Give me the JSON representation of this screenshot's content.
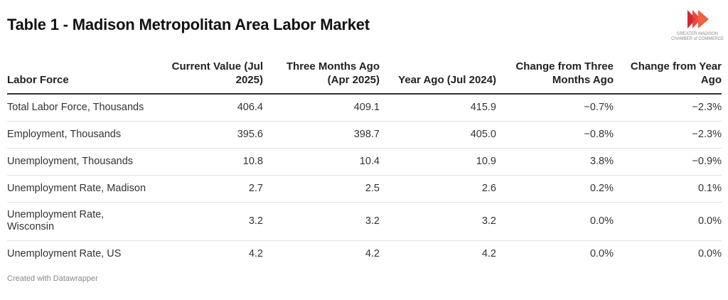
{
  "title": "Table 1 - Madison Metropolitan Area Labor Market",
  "logo": {
    "line1": "GREATER MADISON",
    "line2": "CHAMBER of COMMERCE",
    "colors": [
      "#d8262e",
      "#f2613f"
    ]
  },
  "chart_data": {
    "type": "table",
    "title": "Table 1 - Madison Metropolitan Area Labor Market",
    "columns": [
      "Labor Force",
      "Current Value (Jul 2025)",
      "Three Months Ago (Apr 2025)",
      "Year Ago (Jul 2024)",
      "Change from Three Months Ago",
      "Change from Year Ago"
    ],
    "rows": [
      [
        "Total Labor Force, Thousands",
        "406.4",
        "409.1",
        "415.9",
        "−0.7%",
        "−2.3%"
      ],
      [
        "Employment, Thousands",
        "395.6",
        "398.7",
        "405.0",
        "−0.8%",
        "−2.3%"
      ],
      [
        "Unemployment, Thousands",
        "10.8",
        "10.4",
        "10.9",
        "3.8%",
        "−0.9%"
      ],
      [
        "Unemployment Rate, Madison",
        "2.7",
        "2.5",
        "2.6",
        "0.2%",
        "0.1%"
      ],
      [
        "Unemployment Rate, Wisconsin",
        "3.2",
        "3.2",
        "3.2",
        "0.0%",
        "0.0%"
      ],
      [
        "Unemployment Rate, US",
        "4.2",
        "4.2",
        "4.2",
        "0.0%",
        "0.0%"
      ]
    ]
  },
  "footer": "Created with Datawrapper"
}
